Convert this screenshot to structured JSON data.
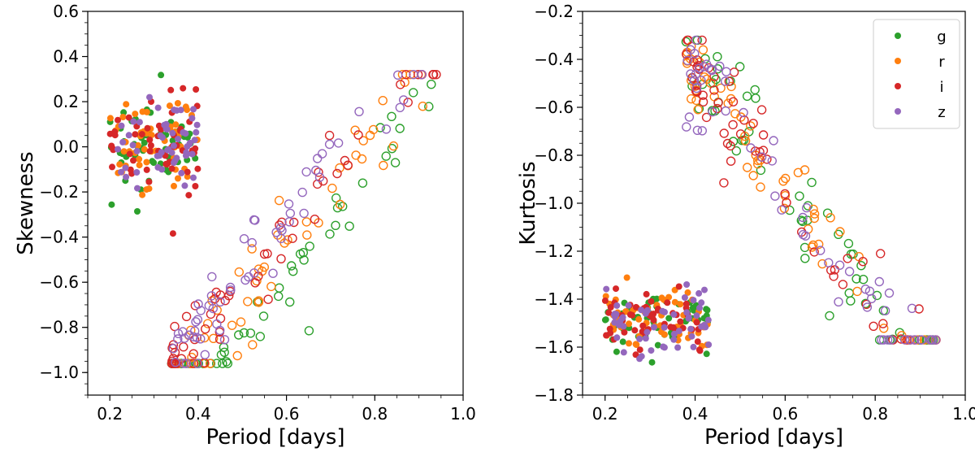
{
  "chart_data": [
    {
      "type": "scatter",
      "title": "",
      "xlabel": "Period [days]",
      "ylabel": "Skewness",
      "xlim": [
        0.15,
        1.0
      ],
      "ylim": [
        -1.1,
        0.6
      ],
      "xticks": [
        0.2,
        0.4,
        0.6,
        0.8,
        1.0
      ],
      "xtick_labels": [
        "0.2",
        "0.4",
        "0.6",
        "0.8",
        "1.0"
      ],
      "yticks": [
        -1.0,
        -0.8,
        -0.6,
        -0.4,
        -0.2,
        0.0,
        0.2,
        0.4,
        0.6
      ],
      "ytick_labels": [
        "−1.0",
        "−0.8",
        "−0.6",
        "−0.4",
        "−0.2",
        "0.0",
        "0.2",
        "0.4",
        "0.6"
      ],
      "legend": null,
      "groups": [
        {
          "name": "filled",
          "marker": "filled-circle",
          "x_range": [
            0.2,
            0.4
          ],
          "y_center": 0.02,
          "y_spread": 0.1,
          "count_per_band": 55
        },
        {
          "name": "open",
          "marker": "open-circle",
          "x_range": [
            0.34,
            0.94
          ],
          "trend_slope": 2.4,
          "trend_intercept": -1.86,
          "band_offsets": {
            "g": -0.14,
            "r": -0.03,
            "i": 0.07,
            "z": 0.11
          },
          "y_spread": 0.09,
          "count_per_band": 60,
          "y_min": -0.96,
          "y_max": 0.32
        }
      ]
    },
    {
      "type": "scatter",
      "title": "",
      "xlabel": "Period [days]",
      "ylabel": "Kurtosis",
      "xlim": [
        0.15,
        1.0
      ],
      "ylim": [
        -1.8,
        -0.2
      ],
      "xticks": [
        0.2,
        0.4,
        0.6,
        0.8,
        1.0
      ],
      "xtick_labels": [
        "0.2",
        "0.4",
        "0.6",
        "0.8",
        "1.0"
      ],
      "yticks": [
        -1.8,
        -1.6,
        -1.4,
        -1.2,
        -1.0,
        -0.8,
        -0.6,
        -0.4,
        -0.2
      ],
      "ytick_labels": [
        "−1.8",
        "−1.6",
        "−1.4",
        "−1.2",
        "−1.0",
        "−0.8",
        "−0.6",
        "−0.4",
        "−0.2"
      ],
      "legend": "top-right",
      "groups": [
        {
          "name": "filled",
          "marker": "filled-circle",
          "x_range": [
            0.2,
            0.43
          ],
          "y_center": -1.49,
          "y_spread": 0.06,
          "count_per_band": 55
        },
        {
          "name": "open",
          "marker": "open-circle",
          "x_range": [
            0.38,
            0.94
          ],
          "trend_slope": -2.6,
          "trend_intercept": 0.62,
          "band_offsets": {
            "g": 0.02,
            "r": 0.0,
            "i": -0.03,
            "z": -0.02
          },
          "y_spread": 0.11,
          "count_per_band": 60,
          "y_min": -1.57,
          "y_max": -0.32
        }
      ]
    }
  ],
  "legend": {
    "items": [
      {
        "label": "g",
        "color": "#2ca02c"
      },
      {
        "label": "r",
        "color": "#ff7f0e"
      },
      {
        "label": "i",
        "color": "#d62728"
      },
      {
        "label": "z",
        "color": "#9467bd"
      }
    ]
  }
}
